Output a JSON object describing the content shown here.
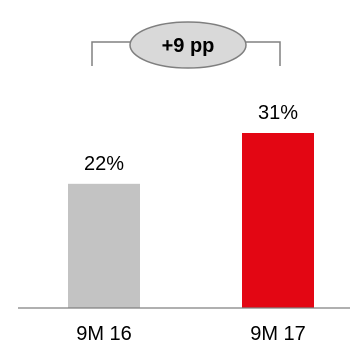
{
  "chart_data": {
    "type": "bar",
    "categories": [
      "9M 16",
      "9M 17"
    ],
    "values": [
      22,
      31
    ],
    "value_labels": [
      "22%",
      "31%"
    ],
    "unit": "%",
    "colors": [
      "#c3c3c3",
      "#e30613"
    ],
    "annotation": {
      "text": "+9 pp",
      "fill": "#d9d9d9",
      "stroke": "#7f7f7f"
    },
    "title": "",
    "xlabel": "",
    "ylabel": "",
    "ylim": [
      0,
      31
    ],
    "grid": false,
    "legend": "none"
  }
}
